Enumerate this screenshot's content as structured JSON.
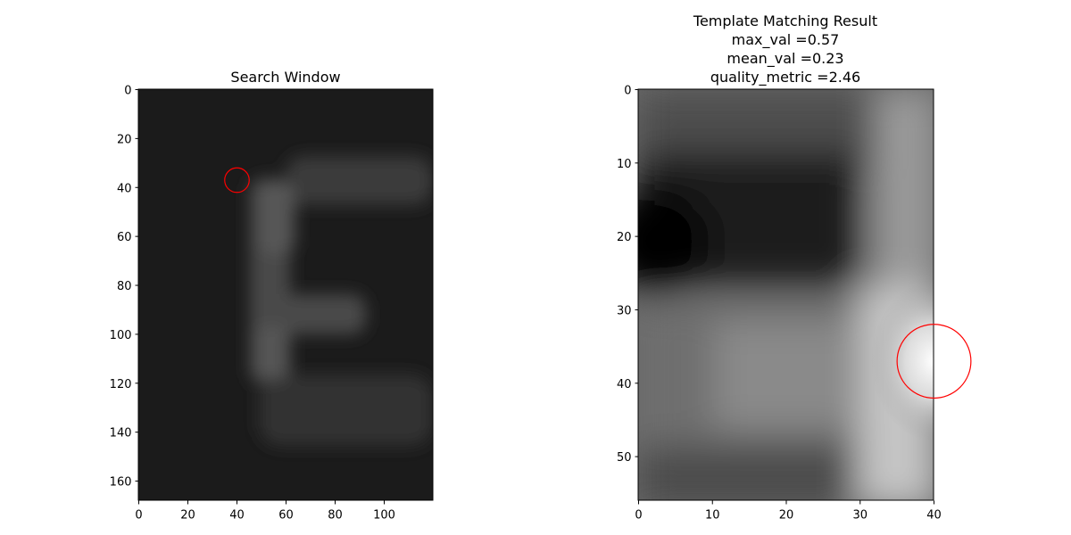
{
  "chart_data": [
    {
      "type": "heatmap",
      "title": "Search Window",
      "xlabel": "",
      "ylabel": "",
      "xlim": [
        0,
        120
      ],
      "ylim": [
        168,
        0
      ],
      "xticks": [
        0,
        20,
        40,
        60,
        80,
        100
      ],
      "yticks": [
        0,
        20,
        40,
        60,
        80,
        100,
        120,
        140,
        160
      ],
      "colormap": "gray",
      "marker": {
        "shape": "circle",
        "x": 40,
        "y": 37,
        "radius": 5,
        "color": "#ff0000"
      },
      "content": "dark image with a faint lighter letter F shape"
    },
    {
      "type": "heatmap",
      "title_lines": [
        "Template Matching Result",
        "max_val =0.57",
        "mean_val =0.23",
        "quality_metric =2.46"
      ],
      "max_val": 0.57,
      "mean_val": 0.23,
      "quality_metric": 2.46,
      "xlim": [
        0,
        40
      ],
      "ylim": [
        56,
        0
      ],
      "xticks": [
        0,
        10,
        20,
        30,
        40
      ],
      "yticks": [
        0,
        10,
        20,
        30,
        40,
        50
      ],
      "colormap": "gray",
      "peak": {
        "x": 40,
        "y": 37
      },
      "marker": {
        "shape": "circle",
        "x": 40,
        "y": 37,
        "radius": 5,
        "color": "#ff0000"
      }
    }
  ]
}
